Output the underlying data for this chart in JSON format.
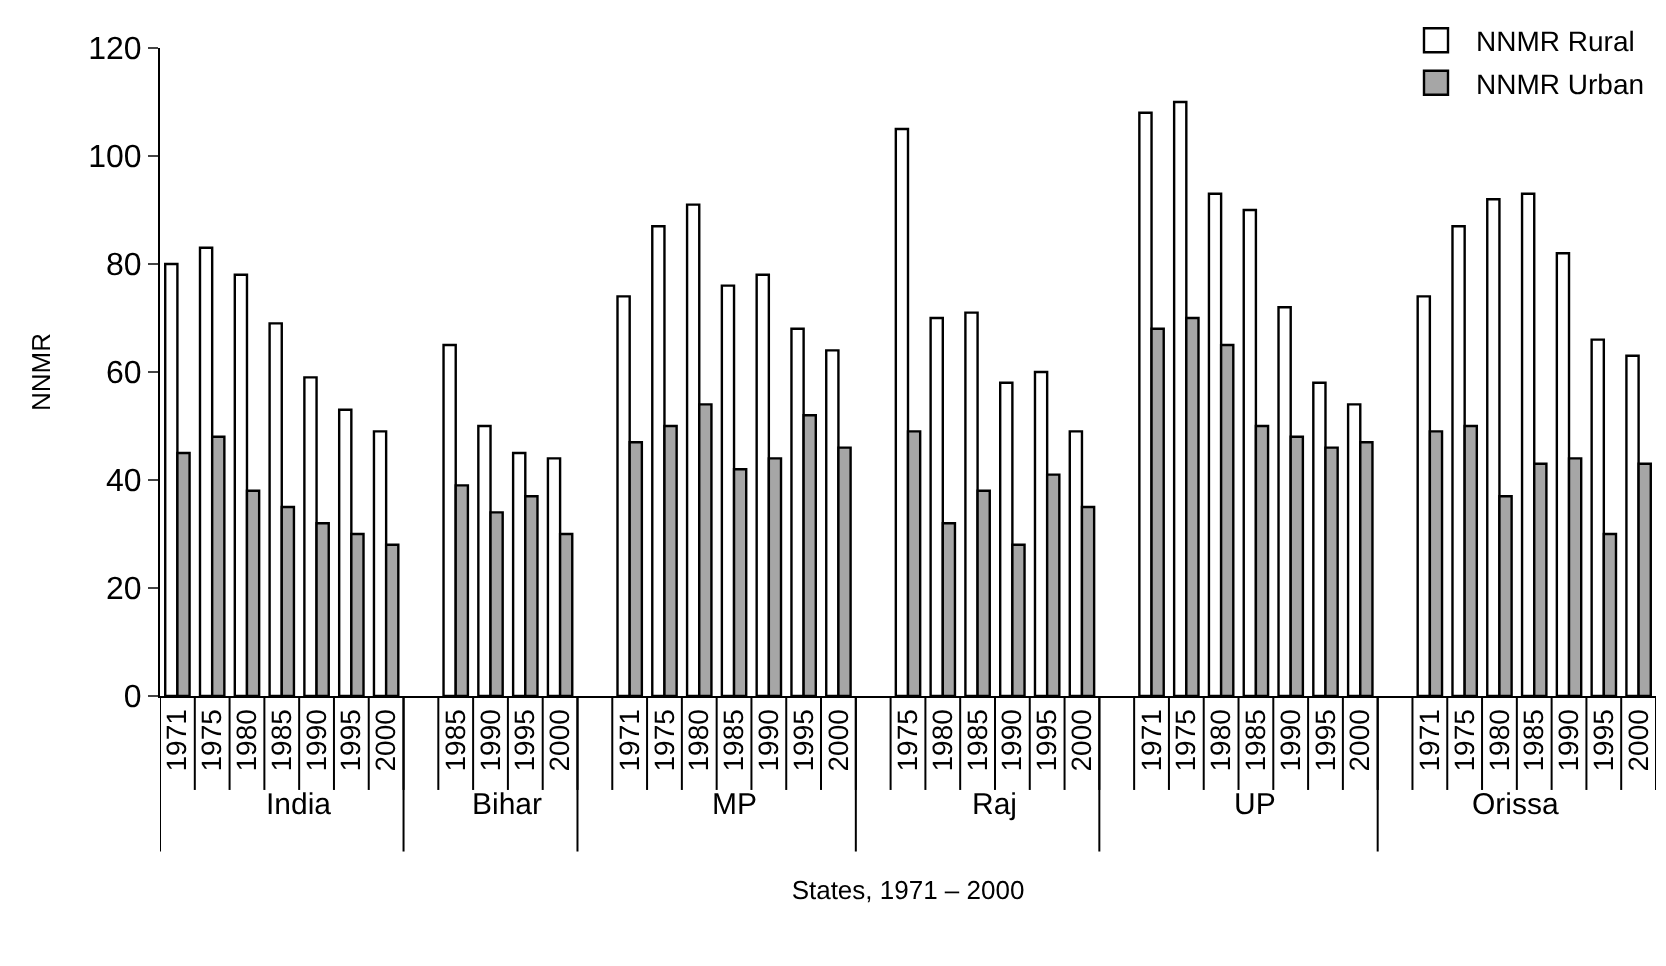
{
  "chart_data": {
    "type": "bar",
    "xlabel": "States, 1971 – 2000",
    "ylabel": "NNMR",
    "categories": [
      "1971",
      "1975",
      "1980",
      "1985",
      "1990",
      "1995",
      "2000",
      null,
      "1985",
      "1990",
      "1995",
      "2000",
      null,
      "1971",
      "1975",
      "1980",
      "1985",
      "1990",
      "1995",
      "2000",
      null,
      "1975",
      "1980",
      "1985",
      "1990",
      "1995",
      "2000",
      null,
      "1971",
      "1975",
      "1980",
      "1985",
      "1990",
      "1995",
      "2000",
      null,
      "1971",
      "1975",
      "1980",
      "1985",
      "1990",
      "1995",
      "2000"
    ],
    "series": [
      {
        "name": "NNMR Rural",
        "color": "#ffffff",
        "values": [
          80,
          83,
          78,
          69,
          59,
          53,
          49,
          null,
          65,
          50,
          45,
          44,
          null,
          74,
          87,
          91,
          76,
          78,
          68,
          64,
          null,
          105,
          70,
          71,
          58,
          60,
          49,
          null,
          108,
          110,
          93,
          90,
          72,
          58,
          54,
          null,
          74,
          87,
          92,
          93,
          82,
          66,
          63
        ]
      },
      {
        "name": "NNMR Urban",
        "color": "#a6a6a6",
        "values": [
          45,
          48,
          38,
          35,
          32,
          30,
          28,
          null,
          39,
          34,
          37,
          30,
          null,
          47,
          50,
          54,
          42,
          44,
          52,
          46,
          null,
          49,
          32,
          38,
          28,
          41,
          35,
          null,
          68,
          70,
          65,
          50,
          48,
          46,
          47,
          null,
          49,
          50,
          37,
          43,
          44,
          30,
          43
        ]
      }
    ],
    "annotations": [
      "India",
      "Bihar",
      "MP",
      "Raj",
      "UP",
      "Orissa"
    ],
    "ylim": [
      0,
      120
    ],
    "yticks": [
      0,
      20,
      40,
      60,
      80,
      100,
      120
    ],
    "legend": "top right"
  }
}
